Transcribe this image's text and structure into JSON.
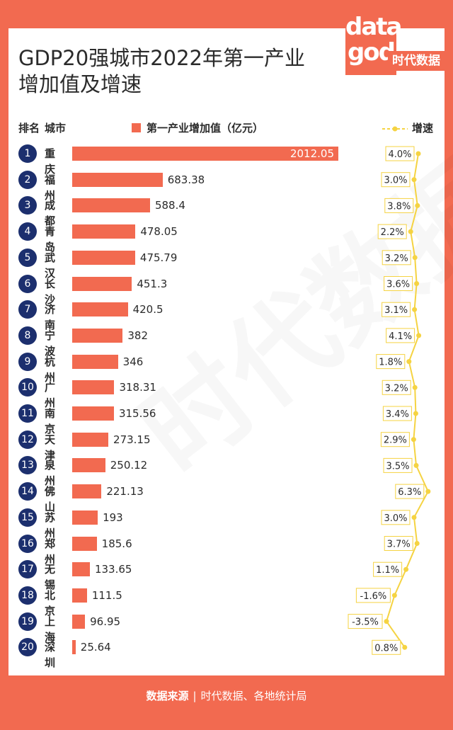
{
  "title_line1": "GDP20强城市2022年第一产业",
  "title_line2": "增加值及增速",
  "logo": {
    "top": "data",
    "bottom": "god",
    "brand": "时代数据"
  },
  "watermark": "时代数据",
  "header": {
    "rank": "排名",
    "city": "城市"
  },
  "legend": {
    "value": "第一产业增加值（亿元）",
    "growth": "增速"
  },
  "colors": {
    "bar": "#f26a50",
    "badge": "#1c2f6e",
    "line": "#f5d342",
    "background": "#f26a50"
  },
  "footer": {
    "label": "数据来源",
    "source": "时代数据、各地统计局"
  },
  "chart_data": {
    "type": "bar",
    "orientation": "horizontal",
    "ranks": [
      "1",
      "2",
      "3",
      "4",
      "5",
      "6",
      "7",
      "8",
      "9",
      "10",
      "11",
      "12",
      "13",
      "14",
      "15",
      "16",
      "17",
      "18",
      "19",
      "20"
    ],
    "categories": [
      "重庆",
      "福州",
      "成都",
      "青岛",
      "武汉",
      "长沙",
      "济南",
      "宁波",
      "杭州",
      "广州",
      "南京",
      "天津",
      "泉州",
      "佛山",
      "苏州",
      "郑州",
      "无锡",
      "北京",
      "上海",
      "深圳"
    ],
    "series": [
      {
        "name": "第一产业增加值（亿元）",
        "type": "bar",
        "values": [
          2012.05,
          683.38,
          588.4,
          478.05,
          475.79,
          451.3,
          420.5,
          382,
          346,
          318.31,
          315.56,
          273.15,
          250.12,
          221.13,
          193,
          185.6,
          133.65,
          111.5,
          96.95,
          25.64
        ],
        "labels": [
          "2012.05",
          "683.38",
          "588.4",
          "478.05",
          "475.79",
          "451.3",
          "420.5",
          "382",
          "346",
          "318.31",
          "315.56",
          "273.15",
          "250.12",
          "221.13",
          "193",
          "185.6",
          "133.65",
          "111.5",
          "96.95",
          "25.64"
        ]
      },
      {
        "name": "增速",
        "type": "line",
        "values": [
          4.0,
          3.0,
          3.8,
          2.2,
          3.2,
          3.6,
          3.1,
          4.1,
          1.8,
          3.2,
          3.4,
          2.9,
          3.5,
          6.3,
          3.0,
          3.7,
          1.1,
          -1.6,
          -3.5,
          0.8
        ],
        "labels": [
          "4.0%",
          "3.0%",
          "3.8%",
          "2.2%",
          "3.2%",
          "3.6%",
          "3.1%",
          "4.1%",
          "1.8%",
          "3.2%",
          "3.4%",
          "2.9%",
          "3.5%",
          "6.3%",
          "3.0%",
          "3.7%",
          "1.1%",
          "-1.6%",
          "-3.5%",
          "0.8%"
        ]
      }
    ]
  }
}
